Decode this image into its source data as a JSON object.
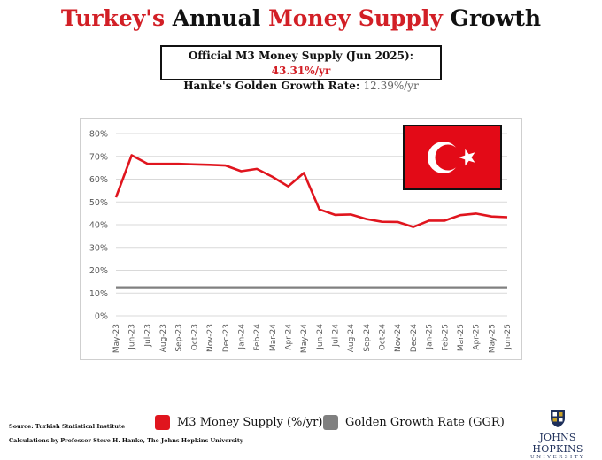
{
  "title": {
    "part1": "Turkey's",
    "part2": " Annual ",
    "part3": "Money Supply",
    "part4": " Growth"
  },
  "infobox": {
    "line1_label": "Official M3 Money Supply (Jun 2025): ",
    "line1_value": "43.31%/yr",
    "line2_label": "Hanke's Golden Growth Rate: ",
    "line2_value": "12.39%/yr"
  },
  "legend": [
    {
      "label": "M3 Money Supply (%/yr)",
      "color": "#e0151e"
    },
    {
      "label": "Golden Growth Rate (GGR)",
      "color": "#808080"
    }
  ],
  "source": "Source: Turkish Statistical Institute",
  "calculations": "Calculations by Professor Steve H. Hanke, The Johns Hopkins University",
  "logo": {
    "name": "JOHNS HOPKINS",
    "sub": "UNIVERSITY"
  },
  "flag": {
    "icon": "turkey-flag-icon",
    "background": "#e30a17",
    "symbol_color": "#ffffff"
  },
  "chart_data": {
    "type": "line",
    "x": [
      "May-23",
      "Jun-23",
      "Jul-23",
      "Aug-23",
      "Sep-23",
      "Oct-23",
      "Nov-23",
      "Dec-23",
      "Jan-24",
      "Feb-24",
      "Mar-24",
      "Apr-24",
      "May-24",
      "Jun-24",
      "Jul-24",
      "Aug-24",
      "Sep-24",
      "Oct-24",
      "Nov-24",
      "Dec-24",
      "Jan-25",
      "Feb-25",
      "Mar-25",
      "Apr-25",
      "May-25",
      "Jun-25"
    ],
    "series": [
      {
        "name": "M3 Money Supply (%/yr)",
        "color": "#e0151e",
        "values": [
          52,
          70.5,
          66.8,
          66.7,
          66.7,
          66.5,
          66.3,
          66.0,
          63.5,
          64.5,
          61.0,
          56.8,
          62.7,
          46.7,
          44.3,
          44.5,
          42.5,
          41.3,
          41.2,
          39.0,
          41.8,
          41.8,
          44.2,
          44.9,
          43.6,
          43.31
        ]
      },
      {
        "name": "Golden Growth Rate (GGR)",
        "color": "#808080",
        "values": [
          12.39,
          12.39,
          12.39,
          12.39,
          12.39,
          12.39,
          12.39,
          12.39,
          12.39,
          12.39,
          12.39,
          12.39,
          12.39,
          12.39,
          12.39,
          12.39,
          12.39,
          12.39,
          12.39,
          12.39,
          12.39,
          12.39,
          12.39,
          12.39,
          12.39,
          12.39
        ]
      }
    ],
    "yticks": [
      "0%",
      "10%",
      "20%",
      "30%",
      "40%",
      "50%",
      "60%",
      "70%",
      "80%"
    ],
    "ylim": [
      0,
      80
    ],
    "grid": true,
    "legend_position": "bottom"
  }
}
